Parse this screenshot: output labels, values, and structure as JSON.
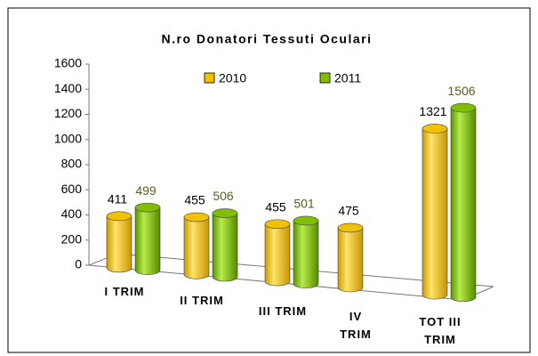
{
  "chart_data": {
    "type": "bar3d",
    "title": "N.ro Donatori Tessuti Oculari",
    "categories": [
      "I TRIM",
      "II TRIM",
      "III TRIM",
      "IV TRIM",
      "TOT III TRIM"
    ],
    "series": [
      {
        "name": "2010",
        "color": "#f2c200",
        "label_color": "#000000",
        "values": [
          411,
          455,
          455,
          475,
          1321
        ]
      },
      {
        "name": "2011",
        "color": "#7fbf00",
        "label_color": "#5c5c1f",
        "values": [
          499,
          506,
          501,
          null,
          1506
        ]
      }
    ],
    "ylim": [
      0,
      1600
    ],
    "yticks": [
      0,
      200,
      400,
      600,
      800,
      1000,
      1200,
      1400,
      1600
    ],
    "legend": "top"
  }
}
